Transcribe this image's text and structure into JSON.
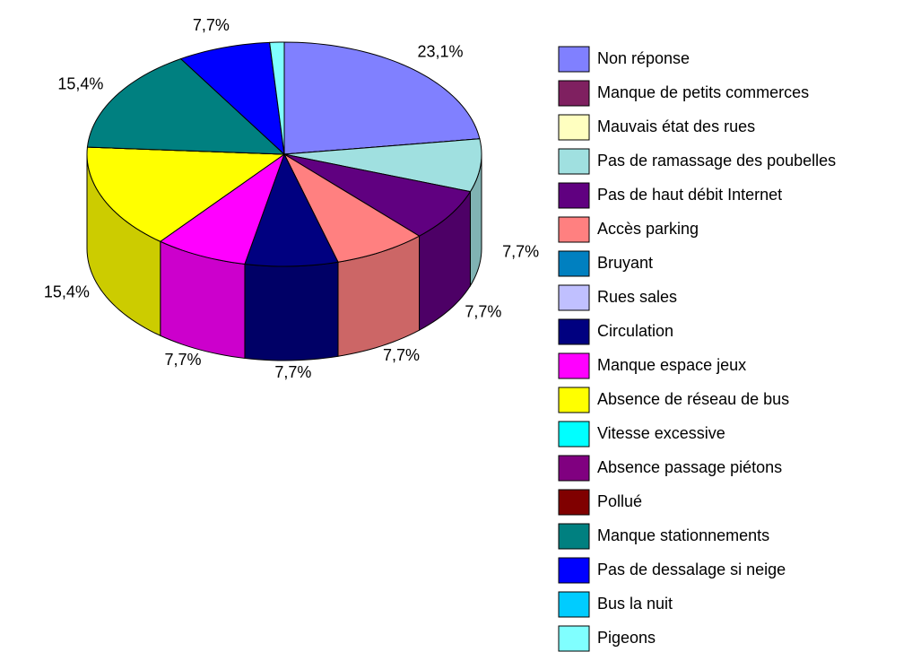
{
  "chart_data": {
    "type": "pie3d",
    "categories": [
      "Non réponse",
      "Manque de petits commerces",
      "Mauvais état des rues",
      "Pas de ramassage des poubelles",
      "Pas de haut débit Internet",
      "Accès parking",
      "Bruyant",
      "Rues sales",
      "Circulation",
      "Manque espace jeux",
      "Absence de réseau de bus",
      "Vitesse excessive",
      "Absence passage piétons",
      "Pollué",
      "Manque stationnements",
      "Pas de dessalage si neige",
      "Bus la nuit",
      "Pigeons"
    ],
    "values": [
      23.1,
      0,
      0,
      7.7,
      7.7,
      7.7,
      0,
      0,
      7.7,
      7.7,
      15.4,
      0,
      0,
      0,
      15.4,
      7.7,
      0,
      1.2
    ],
    "value_labels": [
      "23,1%",
      null,
      null,
      "7,7%",
      "7,7%",
      "7,7%",
      null,
      null,
      "7,7%",
      "7,7%",
      "15,4%",
      null,
      null,
      null,
      "15,4%",
      "7,7%",
      null,
      null
    ],
    "colors": [
      "#8080ff",
      "#7f2060",
      "#ffffc0",
      "#a0e0e0",
      "#600080",
      "#ff8080",
      "#0080c0",
      "#c0c0ff",
      "#000080",
      "#ff00ff",
      "#ffff00",
      "#00ffff",
      "#800080",
      "#800000",
      "#008080",
      "#0000ff",
      "#00ccff",
      "#80ffff"
    ],
    "legend": "right"
  }
}
